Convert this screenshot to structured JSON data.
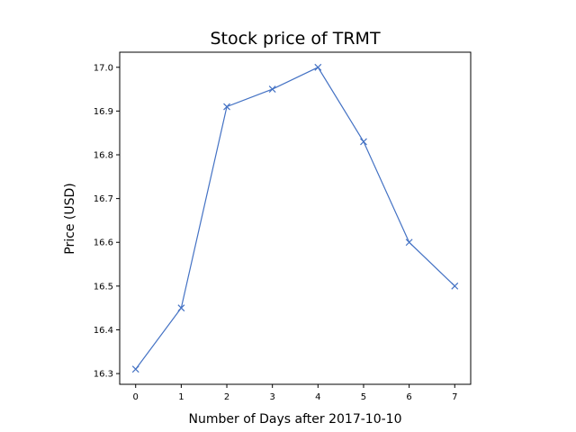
{
  "chart_data": {
    "type": "line",
    "title": "Stock price of TRMT",
    "xlabel": "Number of Days after 2017-10-10",
    "ylabel": "Price (USD)",
    "x": [
      0,
      1,
      2,
      3,
      4,
      5,
      6,
      7
    ],
    "series": [
      {
        "values": [
          16.31,
          16.45,
          16.91,
          16.95,
          17.0,
          16.83,
          16.6,
          16.5
        ]
      }
    ],
    "xticks": [
      "0",
      "1",
      "2",
      "3",
      "4",
      "5",
      "6",
      "7"
    ],
    "yticks": [
      "16.3",
      "16.4",
      "16.5",
      "16.6",
      "16.7",
      "16.8",
      "16.9",
      "17.0"
    ],
    "xlim": [
      -0.35,
      7.35
    ],
    "ylim": [
      16.2755,
      17.0345
    ],
    "grid": false,
    "marker": "x",
    "line_color": "#4472c4"
  }
}
